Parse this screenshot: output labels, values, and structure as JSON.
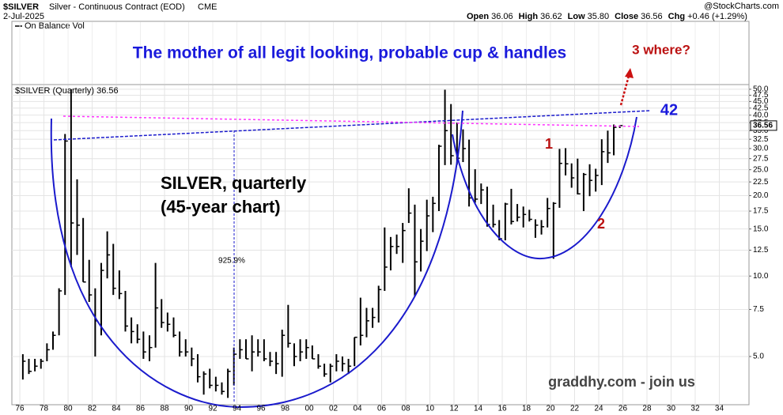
{
  "header": {
    "symbol": "$SILVER",
    "description": "Silver - Continuous Contract (EOD)",
    "exchange": "CME",
    "date": "2-Jul-2025",
    "watermark": "@StockCharts.com",
    "quote": [
      {
        "label": "Open",
        "value": "36.06"
      },
      {
        "label": "High",
        "value": "36.62"
      },
      {
        "label": "Low",
        "value": "35.80"
      },
      {
        "label": "Close",
        "value": "36.56"
      },
      {
        "label": "Chg",
        "value": "+0.46 (+1.29%)"
      }
    ]
  },
  "chart_data": {
    "type": "ohlc",
    "title": "The mother of all legit looking, probable cup & handles",
    "legend": "$SILVER (Quarterly) 36.56",
    "indicator": "On Balance Vol",
    "color": "#000000",
    "log_scale": true,
    "grid": true,
    "xlim": [
      1975.34,
      2036.46
    ],
    "ylim": [
      3.3,
      51.7
    ],
    "xticks": [
      {
        "value": 1976,
        "label": "76"
      },
      {
        "value": 1978,
        "label": "78"
      },
      {
        "value": 1980,
        "label": "80"
      },
      {
        "value": 1982,
        "label": "82"
      },
      {
        "value": 1984,
        "label": "84"
      },
      {
        "value": 1986,
        "label": "86"
      },
      {
        "value": 1988,
        "label": "88"
      },
      {
        "value": 1990,
        "label": "90"
      },
      {
        "value": 1992,
        "label": "92"
      },
      {
        "value": 1994,
        "label": "94"
      },
      {
        "value": 1996,
        "label": "96"
      },
      {
        "value": 1998,
        "label": "98"
      },
      {
        "value": 2000,
        "label": "00"
      },
      {
        "value": 2002,
        "label": "02"
      },
      {
        "value": 2004,
        "label": "04"
      },
      {
        "value": 2006,
        "label": "06"
      },
      {
        "value": 2008,
        "label": "08"
      },
      {
        "value": 2010,
        "label": "10"
      },
      {
        "value": 2012,
        "label": "12"
      },
      {
        "value": 2014,
        "label": "14"
      },
      {
        "value": 2016,
        "label": "16"
      },
      {
        "value": 2018,
        "label": "18"
      },
      {
        "value": 2020,
        "label": "20"
      },
      {
        "value": 2022,
        "label": "22"
      },
      {
        "value": 2024,
        "label": "24"
      },
      {
        "value": 2026,
        "label": "26"
      },
      {
        "value": 2028,
        "label": "28"
      },
      {
        "value": 2030,
        "label": "30"
      },
      {
        "value": 2032,
        "label": "32"
      },
      {
        "value": 2034,
        "label": "34"
      }
    ],
    "yticks": [
      {
        "value": 5,
        "label": "5.0"
      },
      7.5,
      {
        "value": 10,
        "label": "10.0"
      },
      12.5,
      {
        "value": 15,
        "label": "15.0"
      },
      17.5,
      {
        "value": 20,
        "label": "20.0"
      },
      22.5,
      {
        "value": 25,
        "label": "25.0"
      },
      27.5,
      {
        "value": 30,
        "label": "30.0"
      },
      32.5,
      {
        "value": 35,
        "label": "35.0"
      },
      37.5,
      {
        "value": 40,
        "label": "40.0"
      },
      42.5,
      {
        "value": 45,
        "label": "45.0"
      },
      47.5,
      {
        "value": 50,
        "label": "50.0"
      }
    ],
    "last_price": 36.56,
    "x": [
      1976.25,
      1976.75,
      1977.25,
      1977.75,
      1978.25,
      1978.75,
      1979.25,
      1979.75,
      1980.25,
      1980.75,
      1981.25,
      1981.75,
      1982.25,
      1982.75,
      1983.25,
      1983.75,
      1984.25,
      1984.75,
      1985.25,
      1985.75,
      1986.25,
      1986.75,
      1987.25,
      1987.75,
      1988.25,
      1988.75,
      1989.25,
      1989.75,
      1990.25,
      1990.75,
      1991.25,
      1991.75,
      1992.25,
      1992.75,
      1993.25,
      1993.75,
      1994.25,
      1994.75,
      1995.25,
      1995.75,
      1996.25,
      1996.75,
      1997.25,
      1997.75,
      1998.25,
      1998.75,
      1999.25,
      1999.75,
      2000.25,
      2000.75,
      2001.25,
      2001.75,
      2002.25,
      2002.75,
      2003.25,
      2003.75,
      2004.25,
      2004.75,
      2005.25,
      2005.75,
      2006.25,
      2006.75,
      2007.25,
      2007.75,
      2008.25,
      2008.75,
      2009.25,
      2009.75,
      2010.25,
      2010.75,
      2011.25,
      2011.75,
      2012.25,
      2012.75,
      2013.25,
      2013.75,
      2014.25,
      2014.75,
      2015.25,
      2015.75,
      2016.25,
      2016.75,
      2017.25,
      2017.75,
      2018.25,
      2018.75,
      2019.25,
      2019.75,
      2020.25,
      2020.75,
      2021.25,
      2021.75,
      2022.25,
      2022.75,
      2023.25,
      2023.75,
      2024.25,
      2024.75,
      2025.25,
      2025.75
    ],
    "high": [
      5.1,
      4.9,
      4.9,
      4.9,
      5.6,
      6.2,
      9.0,
      34,
      50,
      23,
      16.5,
      11.5,
      9.0,
      11.2,
      14.7,
      13.2,
      10.5,
      8.8,
      7.0,
      6.6,
      6.2,
      6.0,
      11.2,
      8.2,
      7.3,
      7.0,
      6.2,
      5.8,
      5.4,
      5.1,
      4.4,
      4.5,
      4.2,
      4.0,
      4.5,
      5.4,
      5.8,
      5.8,
      6.0,
      5.8,
      5.8,
      5.2,
      5.2,
      6.3,
      7.8,
      5.6,
      5.8,
      5.8,
      5.5,
      5.1,
      4.7,
      4.7,
      5.1,
      5.0,
      4.9,
      5.9,
      8.3,
      7.6,
      7.6,
      9.2,
      15.2,
      14.0,
      14.3,
      15.8,
      21.3,
      18.5,
      15.0,
      19.3,
      19.8,
      31,
      49.8,
      44.0,
      37.5,
      35.4,
      32.4,
      25.1,
      22.2,
      21.6,
      18.5,
      16.2,
      18.8,
      21.2,
      18.6,
      18.2,
      17.7,
      16.3,
      16.2,
      19.6,
      18.9,
      29.9,
      30.1,
      26.4,
      27.5,
      24.3,
      26.2,
      25.2,
      32.5,
      35.0,
      36.9,
      36.62
    ],
    "low": [
      4.1,
      4.3,
      4.4,
      4.5,
      4.8,
      5.3,
      6.0,
      8.5,
      10.8,
      12,
      9.5,
      8.0,
      5.0,
      6.0,
      9.8,
      8.5,
      8.2,
      6.2,
      5.6,
      5.6,
      4.9,
      4.8,
      5.4,
      6.4,
      6.2,
      5.9,
      5.0,
      5.0,
      4.6,
      4.0,
      3.6,
      3.8,
      3.7,
      3.6,
      3.5,
      3.9,
      4.9,
      4.9,
      4.4,
      5.0,
      4.8,
      4.6,
      4.3,
      4.2,
      5.4,
      4.6,
      4.8,
      4.9,
      4.9,
      4.5,
      4.2,
      4.0,
      4.4,
      4.4,
      4.3,
      4.6,
      5.5,
      5.9,
      6.4,
      6.7,
      8.8,
      10.5,
      12.1,
      11.2,
      15.8,
      8.4,
      10.4,
      12.4,
      14.6,
      17.5,
      26.0,
      26.1,
      26.1,
      26.7,
      18.2,
      18.8,
      18.6,
      15.3,
      15.2,
      13.6,
      13.6,
      15.6,
      16.0,
      15.2,
      16.0,
      13.9,
      14.3,
      15.2,
      11.6,
      18.0,
      23.8,
      21.4,
      20.2,
      17.5,
      19.9,
      20.7,
      21.9,
      26.5,
      28.3,
      35.8
    ],
    "close": [
      4.8,
      4.4,
      4.6,
      4.8,
      5.3,
      6.0,
      8.8,
      32,
      15.8,
      15.5,
      9.5,
      8.5,
      6.8,
      10.5,
      12.0,
      9.0,
      8.6,
      6.5,
      6.2,
      5.8,
      5.2,
      5.4,
      7.6,
      6.7,
      6.6,
      6.0,
      5.2,
      5.2,
      4.9,
      4.2,
      4.3,
      3.9,
      3.9,
      3.7,
      4.4,
      5.1,
      5.3,
      4.9,
      5.2,
      5.2,
      4.9,
      4.8,
      4.7,
      6.0,
      5.6,
      5.0,
      5.2,
      5.4,
      4.9,
      4.6,
      4.3,
      4.6,
      4.8,
      4.7,
      4.6,
      5.9,
      6.0,
      6.8,
      7.0,
      8.9,
      10.8,
      12.9,
      12.9,
      14.8,
      17.2,
      11.3,
      13.5,
      16.8,
      18.7,
      30.6,
      35.0,
      28.2,
      27.6,
      30.0,
      19.6,
      19.4,
      21.0,
      15.6,
      15.6,
      13.8,
      18.6,
      16.0,
      16.6,
      17.0,
      16.3,
      15.5,
      15.3,
      17.9,
      18.7,
      26.4,
      26.3,
      23.3,
      20.3,
      24.0,
      22.8,
      23.8,
      29.2,
      28.9,
      36.0,
      36.56
    ],
    "annotations": [
      "3 where?",
      "42",
      "1",
      "2",
      "SILVER, quarterly",
      "(45-year chart)",
      "925.9%",
      "graddhy.com - join us"
    ]
  }
}
